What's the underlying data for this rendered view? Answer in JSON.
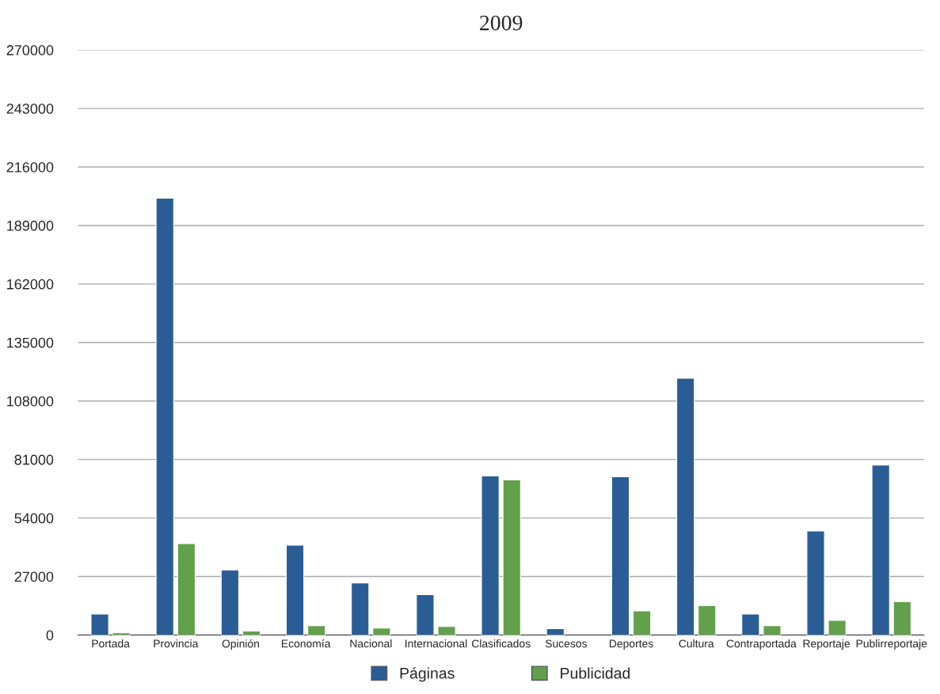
{
  "chart_data": {
    "type": "bar",
    "title": "2009",
    "categories": [
      "Portada",
      "Provincia",
      "Opinión",
      "Economía",
      "Nacional",
      "Internacional",
      "Clasificados",
      "Sucesos",
      "Deportes",
      "Cultura",
      "Contraportada",
      "Reportaje",
      "Publirreportaje"
    ],
    "series": [
      {
        "name": "Páginas",
        "color": "#2a5d96",
        "values": [
          9700,
          201600,
          30000,
          41500,
          24000,
          18600,
          73400,
          2900,
          73000,
          118500,
          9700,
          48000,
          78400
        ]
      },
      {
        "name": "Publicidad",
        "color": "#62a04c",
        "values": [
          1000,
          42200,
          1800,
          4300,
          3200,
          3900,
          71600,
          null,
          11100,
          13600,
          4300,
          6800,
          15400
        ]
      }
    ],
    "ylim": [
      0,
      270000
    ],
    "yticks": [
      0,
      27000,
      54000,
      81000,
      108000,
      135000,
      162000,
      189000,
      216000,
      243000,
      270000
    ],
    "grid": "y",
    "legend": "bottom"
  }
}
